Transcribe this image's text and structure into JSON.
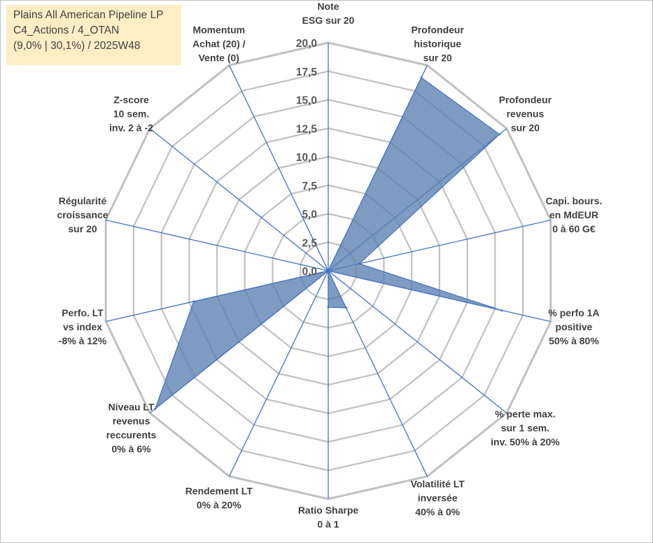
{
  "title": {
    "line1": "Plains All American Pipeline LP",
    "line2": "C4_Actions / 4_OTAN",
    "line3": "(9,0% | 30,1%) / 2025W48"
  },
  "chart_data": {
    "type": "radar",
    "rmax": 20,
    "tick_labels": [
      "0,0",
      "2,5",
      "5,0",
      "7,5",
      "10,0",
      "12,5",
      "15,0",
      "17,5",
      "20,0"
    ],
    "categories": [
      [
        "Note",
        "ESG sur 20"
      ],
      [
        "Profondeur",
        "historique",
        "sur 20"
      ],
      [
        "Profondeur",
        "revenus",
        "sur 20"
      ],
      [
        "Capi. bours.",
        "en MdEUR",
        "0 à 60 G€"
      ],
      [
        "% perfo 1A",
        "positive",
        "50% à 80%"
      ],
      [
        "% perte max.",
        "sur 1 sem.",
        "inv. 50% à 20%"
      ],
      [
        "Volatilité LT",
        "inversée",
        "40% à 0%"
      ],
      [
        "Ratio Sharpe",
        "0 à 1"
      ],
      [
        "Rendement LT",
        "0% à 20%"
      ],
      [
        "Niveau LT",
        "revenus",
        "reccurents",
        "0% à 6%"
      ],
      [
        "Perfo. LT",
        "vs index",
        "-8% à 12%"
      ],
      [
        "Régularité",
        "croissance",
        "sur 20"
      ],
      [
        "Z-score",
        "10 sem.",
        "inv. 2 à -2"
      ],
      [
        "Momentum",
        "Achat (20) /",
        "Vente (0)"
      ]
    ],
    "values": [
      0,
      18.8,
      19.2,
      2.8,
      15.6,
      0,
      3.6,
      3.2,
      0,
      19.4,
      12.1,
      0,
      0,
      0
    ],
    "colors": {
      "fill": "#5a7fb0",
      "fill_opacity": 0.78,
      "stroke": "#4472c4",
      "grid": "#c0c0c0",
      "spoke": "#4472c4",
      "title_bg": "#fdeec5"
    }
  }
}
